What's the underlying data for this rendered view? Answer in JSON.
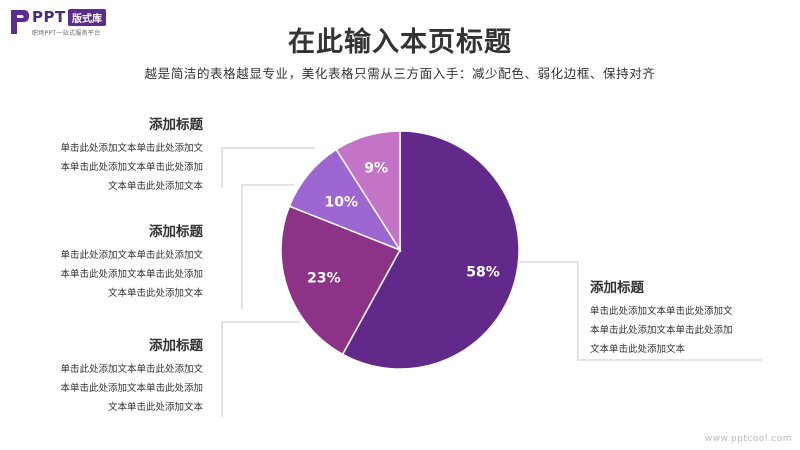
{
  "logo": {
    "ppt": "PPT",
    "badge": "版式库",
    "tagline": "职场PPT一站式服务平台"
  },
  "title": "在此输入本页标题",
  "subtitle": "越是简洁的表格越显专业，美化表格只需从三方面入手：减少配色、弱化边框、保持对齐",
  "blocks": [
    {
      "title": "添加标题",
      "lines": [
        "单击此处添加文本单击此处添加文",
        "本单击此处添加文本单击此处添加",
        "文本单击此处添加文本"
      ]
    },
    {
      "title": "添加标题",
      "lines": [
        "单击此处添加文本单击此处添加文",
        "本单击此处添加文本单击此处添加",
        "文本单击此处添加文本"
      ]
    },
    {
      "title": "添加标题",
      "lines": [
        "单击此处添加文本单击此处添加文",
        "本单击此处添加文本单击此处添加",
        "文本单击此处添加文本"
      ]
    },
    {
      "title": "添加标题",
      "lines": [
        "单击此处添加文本单击此处添加文",
        "本单击此处添加文本单击此处添加",
        "文本单击此处添加文本"
      ]
    }
  ],
  "chart_data": {
    "type": "pie",
    "values": [
      58,
      23,
      10,
      9
    ],
    "labels": [
      "58%",
      "23%",
      "10%",
      "9%"
    ],
    "colors": [
      "#62298a",
      "#8c3388",
      "#9e66d0",
      "#c474c6"
    ],
    "start_angle_deg": 0,
    "direction": "clockwise"
  },
  "watermark": "www.pptcool.com"
}
